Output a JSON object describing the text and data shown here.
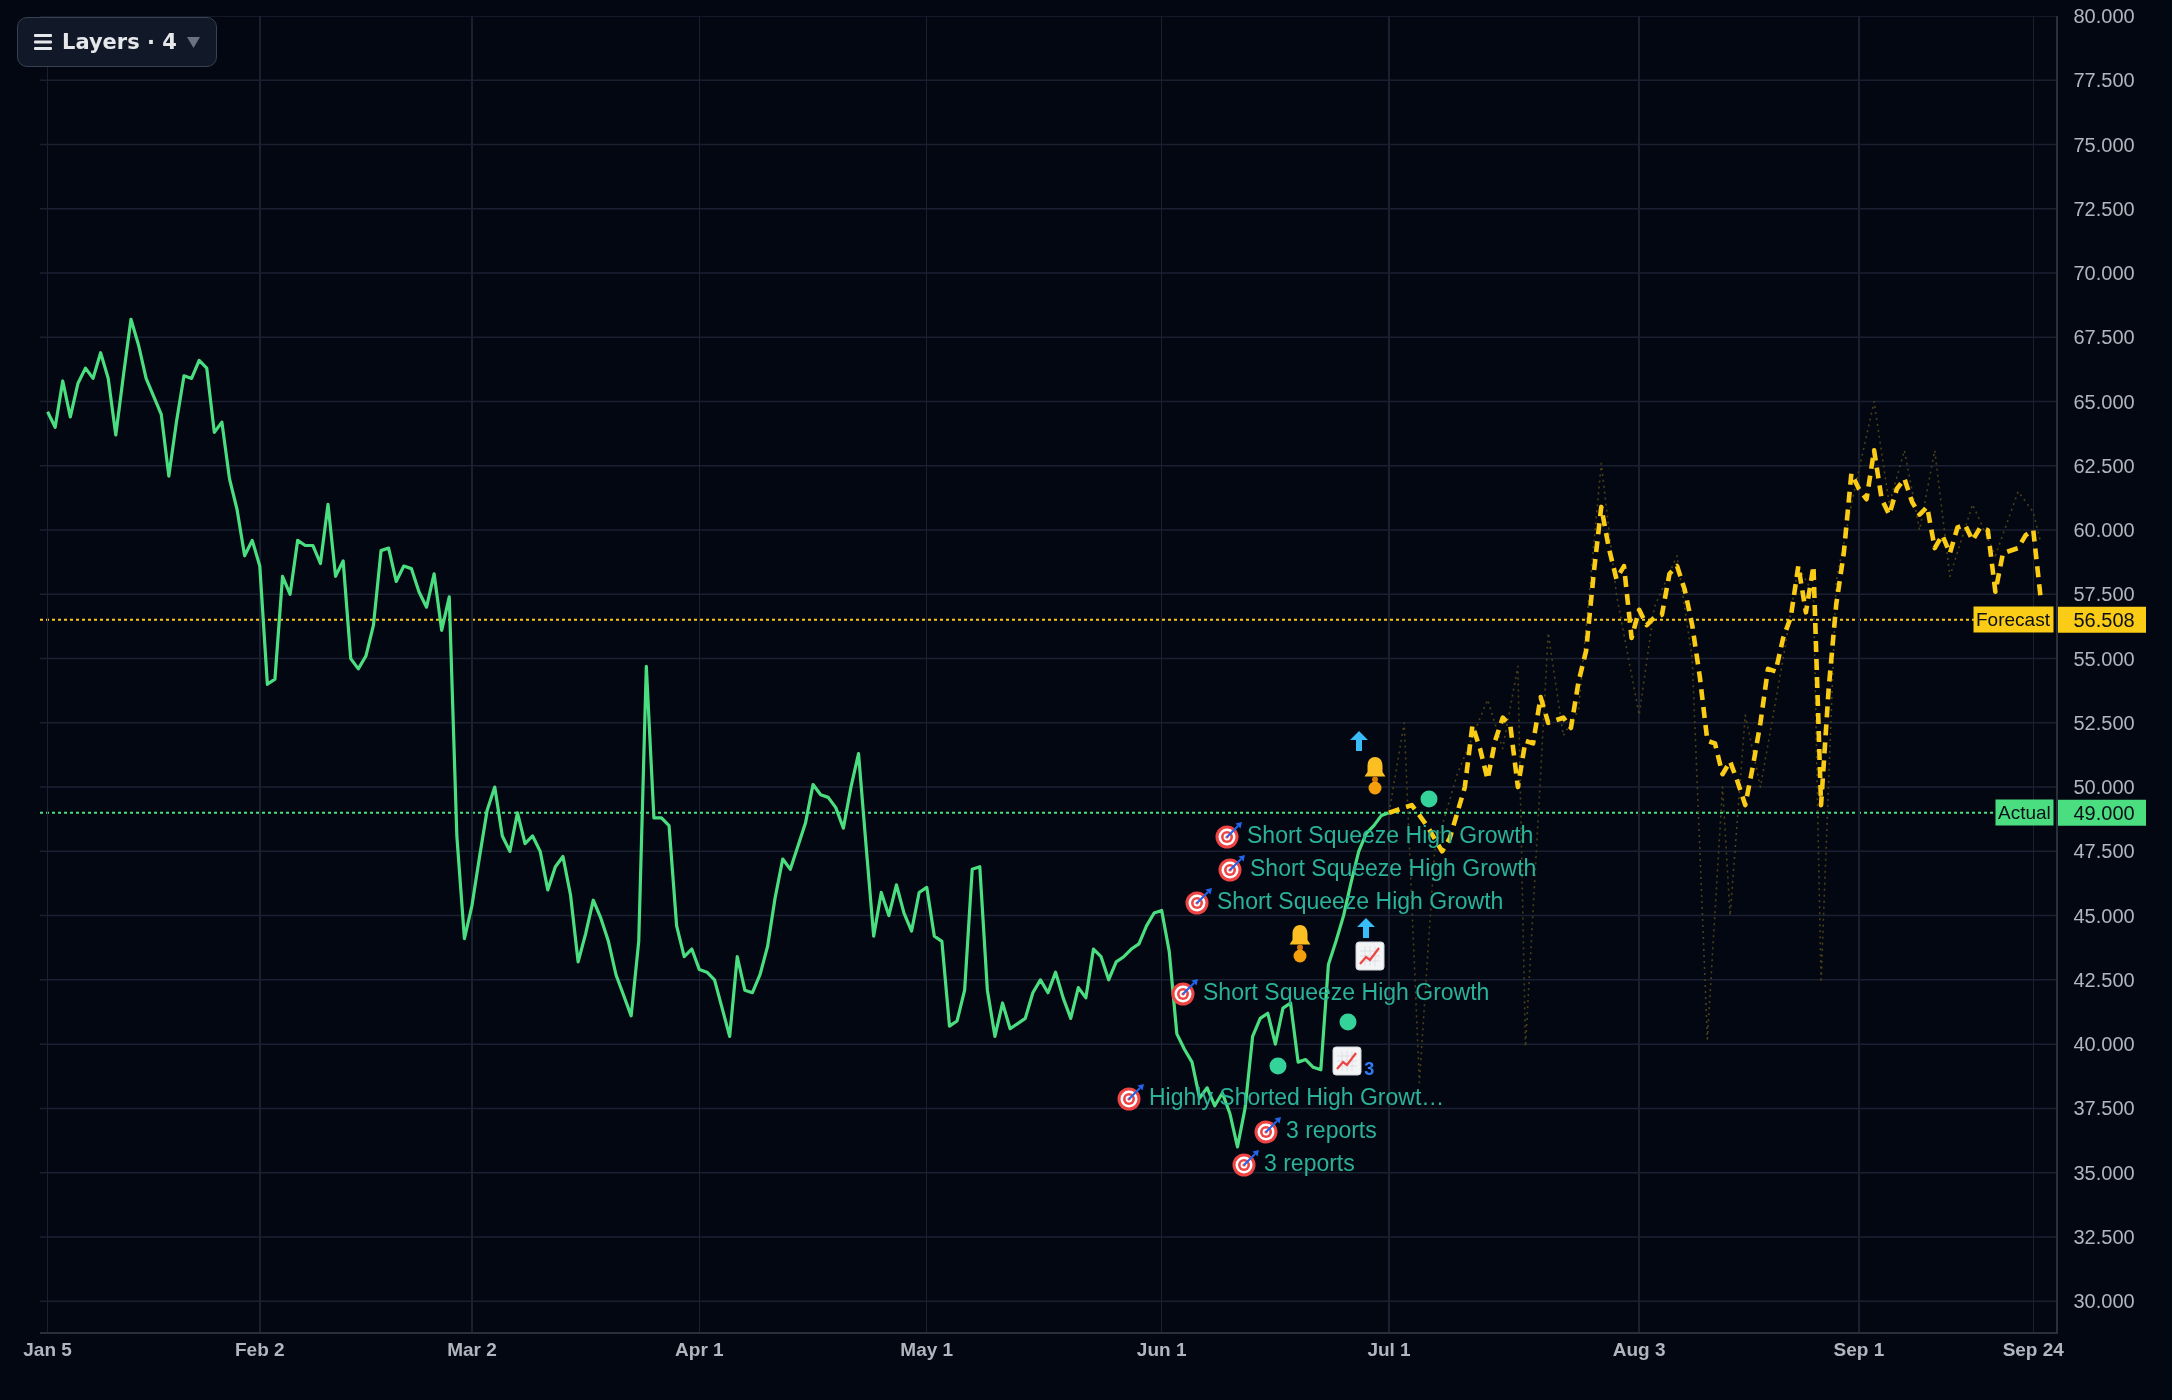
{
  "chart_data": {
    "type": "line",
    "xlim": [
      "--01-04",
      "--09-27"
    ],
    "xticks": [
      {
        "value": "--01-05",
        "label": "Jan 5"
      },
      {
        "value": "--02-02",
        "label": "Feb 2"
      },
      {
        "value": "--03-02",
        "label": "Mar 2"
      },
      {
        "value": "--04-01",
        "label": "Apr 1"
      },
      {
        "value": "--05-01",
        "label": "May 1"
      },
      {
        "value": "--06-01",
        "label": "Jun 1"
      },
      {
        "value": "--07-01",
        "label": "Jul 1"
      },
      {
        "value": "--08-03",
        "label": "Aug 3"
      },
      {
        "value": "--09-01",
        "label": "Sep 1"
      },
      {
        "value": "--09-24",
        "label": "Sep 24"
      }
    ],
    "ylim": [
      28.8,
      80
    ],
    "yticks": [
      {
        "value": 30,
        "label": "30.000"
      },
      {
        "value": 32.5,
        "label": "32.500"
      },
      {
        "value": 35,
        "label": "35.000"
      },
      {
        "value": 37.5,
        "label": "37.500"
      },
      {
        "value": 40,
        "label": "40.000"
      },
      {
        "value": 42.5,
        "label": "42.500"
      },
      {
        "value": 45,
        "label": "45.000"
      },
      {
        "value": 47.5,
        "label": "47.500"
      },
      {
        "value": 49,
        "label": "49.000"
      },
      {
        "value": 50,
        "label": "50.000"
      },
      {
        "value": 52.5,
        "label": "52.500"
      },
      {
        "value": 55,
        "label": "55.000"
      },
      {
        "value": 56.508,
        "label": "56.508"
      },
      {
        "value": 57.5,
        "label": "57.500"
      },
      {
        "value": 60,
        "label": "60.000"
      },
      {
        "value": 62.5,
        "label": "62.500"
      },
      {
        "value": 65,
        "label": "65.000"
      },
      {
        "value": 67.5,
        "label": "67.500"
      },
      {
        "value": 70,
        "label": "70.000"
      },
      {
        "value": 72.5,
        "label": "72.500"
      },
      {
        "value": 75,
        "label": "75.000"
      },
      {
        "value": 77.5,
        "label": "77.500"
      },
      {
        "value": 80,
        "label": "80.000"
      }
    ],
    "grid": true,
    "series": [
      {
        "color": "#4ade80",
        "line_style": "solid",
        "x": [
          "--01-05",
          "--01-06",
          "--01-07",
          "--01-08",
          "--01-09",
          "--01-10",
          "--01-11",
          "--01-12",
          "--01-13",
          "--01-14",
          "--01-15",
          "--01-16",
          "--01-17",
          "--01-18",
          "--01-19",
          "--01-20",
          "--01-21",
          "--01-22",
          "--01-23",
          "--01-24",
          "--01-25",
          "--01-26",
          "--01-27",
          "--01-28",
          "--01-29",
          "--01-30",
          "--01-31",
          "--02-01",
          "--02-02",
          "--02-03",
          "--02-04",
          "--02-05",
          "--02-06",
          "--02-07",
          "--02-08",
          "--02-09",
          "--02-10",
          "--02-11",
          "--02-12",
          "--02-13",
          "--02-14",
          "--02-15",
          "--02-16",
          "--02-17",
          "--02-18",
          "--02-19",
          "--02-20",
          "--02-21",
          "--02-22",
          "--02-23",
          "--02-24",
          "--02-25",
          "--02-26",
          "--02-27",
          "--02-28",
          "--03-01",
          "--03-02",
          "--03-03",
          "--03-04",
          "--03-05",
          "--03-06",
          "--03-07",
          "--03-08",
          "--03-09",
          "--03-10",
          "--03-11",
          "--03-12",
          "--03-13",
          "--03-14",
          "--03-15",
          "--03-16",
          "--03-17",
          "--03-18",
          "--03-19",
          "--03-20",
          "--03-21",
          "--03-22",
          "--03-23",
          "--03-24",
          "--03-25",
          "--03-26",
          "--03-27",
          "--03-28",
          "--03-29",
          "--03-30",
          "--03-31",
          "--04-01",
          "--04-02",
          "--04-03",
          "--04-04",
          "--04-05",
          "--04-06",
          "--04-07",
          "--04-08",
          "--04-09",
          "--04-10",
          "--04-11",
          "--04-12",
          "--04-13",
          "--04-14",
          "--04-15",
          "--04-16",
          "--04-17",
          "--04-18",
          "--04-19",
          "--04-20",
          "--04-21",
          "--04-22",
          "--04-23",
          "--04-24",
          "--04-25",
          "--04-26",
          "--04-27",
          "--04-28",
          "--04-29",
          "--04-30",
          "--05-01",
          "--05-02",
          "--05-03",
          "--05-04",
          "--05-05",
          "--05-06",
          "--05-07",
          "--05-08",
          "--05-09",
          "--05-10",
          "--05-11",
          "--05-12",
          "--05-13",
          "--05-14",
          "--05-15",
          "--05-16",
          "--05-17",
          "--05-18",
          "--05-19",
          "--05-20",
          "--05-21",
          "--05-22",
          "--05-23",
          "--05-24",
          "--05-25",
          "--05-26",
          "--05-27",
          "--05-28",
          "--05-29",
          "--05-30",
          "--05-31",
          "--06-01",
          "--06-02",
          "--06-03",
          "--06-04",
          "--06-05",
          "--06-06",
          "--06-07",
          "--06-08",
          "--06-09",
          "--06-10",
          "--06-11",
          "--06-12",
          "--06-13",
          "--06-14",
          "--06-15",
          "--06-16",
          "--06-17",
          "--06-18",
          "--06-19",
          "--06-20",
          "--06-21",
          "--06-22",
          "--06-23",
          "--06-24",
          "--06-25",
          "--06-26",
          "--06-27",
          "--06-28",
          "--06-29",
          "--06-30",
          "--07-01"
        ],
        "values": [
          64.6,
          64.0,
          65.8,
          64.4,
          65.7,
          66.3,
          65.9,
          66.9,
          65.9,
          63.7,
          66.0,
          68.2,
          67.2,
          65.9,
          65.2,
          64.5,
          62.1,
          64.2,
          66.0,
          65.9,
          66.6,
          66.3,
          63.8,
          64.2,
          62.0,
          60.8,
          59.0,
          59.6,
          58.6,
          54.0,
          54.2,
          58.2,
          57.5,
          59.6,
          59.4,
          59.4,
          58.7,
          61.0,
          58.2,
          58.8,
          55.0,
          54.6,
          55.1,
          56.3,
          59.2,
          59.3,
          58.0,
          58.6,
          58.5,
          57.6,
          57.0,
          58.3,
          56.1,
          57.4,
          48.1,
          44.1,
          45.4,
          47.3,
          49.1,
          50.0,
          48.1,
          47.5,
          49.0,
          47.8,
          48.1,
          47.5,
          46.0,
          46.9,
          47.3,
          45.8,
          43.2,
          44.3,
          45.6,
          44.9,
          44.0,
          42.7,
          41.9,
          41.1,
          44.0,
          54.7,
          48.8,
          48.8,
          48.5,
          44.6,
          43.4,
          43.7,
          42.9,
          42.8,
          42.5,
          41.4,
          40.3,
          43.4,
          42.1,
          42.0,
          42.7,
          43.8,
          45.7,
          47.2,
          46.8,
          47.7,
          48.6,
          50.1,
          49.7,
          49.6,
          49.2,
          48.4,
          50.0,
          51.3,
          47.7,
          44.2,
          45.9,
          45.0,
          46.2,
          45.1,
          44.4,
          45.9,
          46.1,
          44.2,
          44.0,
          40.7,
          40.9,
          42.1,
          46.8,
          46.9,
          42.1,
          40.3,
          41.6,
          40.6,
          40.8,
          41.0,
          42.0,
          42.5,
          42.0,
          42.8,
          41.8,
          41.0,
          42.2,
          41.8,
          43.7,
          43.4,
          42.5,
          43.2,
          43.4,
          43.7,
          43.9,
          44.6,
          45.1,
          45.2,
          43.6,
          40.4,
          39.8,
          39.3,
          37.9,
          38.3,
          37.6,
          38.1,
          37.3,
          36.0,
          37.5,
          40.3,
          41.0,
          41.2,
          40.0,
          41.4,
          41.6,
          39.3,
          39.4,
          39.1,
          39.0,
          43.1,
          44.0,
          45.0,
          46.3,
          47.5,
          48.2,
          48.5,
          48.9,
          49.0
        ]
      },
      {
        "color": "#4a4118",
        "line_style": "dotted",
        "x": [
          "--07-01",
          "--07-03",
          "--07-05",
          "--07-07",
          "--07-10",
          "--07-14",
          "--07-16",
          "--07-18",
          "--07-19",
          "--07-21",
          "--07-22",
          "--07-24",
          "--07-26",
          "--07-29",
          "--07-31",
          "--08-03",
          "--08-05",
          "--08-08",
          "--08-10",
          "--08-12",
          "--08-14",
          "--08-15",
          "--08-17",
          "--08-19",
          "--08-22",
          "--08-24",
          "--08-26",
          "--08-27",
          "--08-29",
          "--08-31",
          "--09-03",
          "--09-05",
          "--09-07",
          "--09-09",
          "--09-11",
          "--09-13",
          "--09-16",
          "--09-19",
          "--09-22",
          "--09-24",
          "--09-25"
        ],
        "values": [
          49.0,
          52.5,
          38.5,
          47.5,
          50.5,
          53.4,
          51.5,
          54.7,
          39.9,
          50.5,
          56.0,
          52.0,
          53.0,
          62.6,
          57.5,
          52.8,
          57.0,
          59.0,
          55.0,
          40.2,
          50.0,
          45.0,
          52.8,
          50.0,
          55.0,
          58.6,
          57.5,
          42.4,
          58.0,
          61.0,
          65.0,
          61.0,
          63.1,
          60.0,
          63.1,
          58.2,
          61.0,
          59.0,
          61.5,
          60.7,
          59.5
        ]
      },
      {
        "color": "#facc15",
        "line_style": "dashed",
        "x": [
          "--07-01",
          "--07-04",
          "--07-06",
          "--07-08",
          "--07-09",
          "--07-11",
          "--07-12",
          "--07-13",
          "--07-14",
          "--07-15",
          "--07-16",
          "--07-17",
          "--07-18",
          "--07-19",
          "--07-20",
          "--07-21",
          "--07-22",
          "--07-24",
          "--07-25",
          "--07-26",
          "--07-27",
          "--07-28",
          "--07-29",
          "--07-30",
          "--07-31",
          "--08-01",
          "--08-02",
          "--08-03",
          "--08-04",
          "--08-05",
          "--08-06",
          "--08-07",
          "--08-08",
          "--08-09",
          "--08-10",
          "--08-11",
          "--08-12",
          "--08-13",
          "--08-14",
          "--08-15",
          "--08-16",
          "--08-17",
          "--08-18",
          "--08-19",
          "--08-20",
          "--08-21",
          "--08-22",
          "--08-23",
          "--08-24",
          "--08-25",
          "--08-26",
          "--08-27",
          "--08-28",
          "--08-29",
          "--08-30",
          "--08-31",
          "--09-01",
          "--09-02",
          "--09-03",
          "--09-04",
          "--09-05",
          "--09-06",
          "--09-07",
          "--09-08",
          "--09-09",
          "--09-10",
          "--09-11",
          "--09-12",
          "--09-13",
          "--09-14",
          "--09-15",
          "--09-16",
          "--09-17",
          "--09-18",
          "--09-19",
          "--09-20",
          "--09-22",
          "--09-23",
          "--09-24",
          "--09-25"
        ],
        "values": [
          49.0,
          49.3,
          48.5,
          47.5,
          48.0,
          50.0,
          52.4,
          51.5,
          50.3,
          51.8,
          52.7,
          52.4,
          50.0,
          51.8,
          51.7,
          53.5,
          52.5,
          52.7,
          52.3,
          54.1,
          55.3,
          58.3,
          60.9,
          59.3,
          58.1,
          58.6,
          55.8,
          56.9,
          56.3,
          56.6,
          56.7,
          58.3,
          58.6,
          57.7,
          56.3,
          54.3,
          51.8,
          51.7,
          50.5,
          51.0,
          50.2,
          49.3,
          50.8,
          52.5,
          54.6,
          54.5,
          55.8,
          56.6,
          58.6,
          56.8,
          58.6,
          49.3,
          53.8,
          57.1,
          59.1,
          62.2,
          61.6,
          61.2,
          63.1,
          61.2,
          60.6,
          61.6,
          62.0,
          61.1,
          60.6,
          60.9,
          59.3,
          59.8,
          59.1,
          60.1,
          60.2,
          59.6,
          60.1,
          60.0,
          57.6,
          59.1,
          59.3,
          59.8,
          60.0,
          57.3
        ]
      }
    ],
    "ref_lines": [
      {
        "axis": "y",
        "value": 56.508,
        "label": "Forecast",
        "color": "#facc15",
        "line_style": "dotted"
      },
      {
        "axis": "y",
        "value": 49,
        "label": "Actual",
        "color": "#4ade80",
        "line_style": "dotted"
      }
    ],
    "annotations": [
      "Layers · 4",
      "3",
      "Short Squeeze High Growth",
      "Short Squeeze High Growth",
      "Short Squeeze High Growth",
      "Short Squeeze High Growth",
      "Highly Shorted High Growt…",
      "3 reports",
      "3 reports"
    ]
  }
}
